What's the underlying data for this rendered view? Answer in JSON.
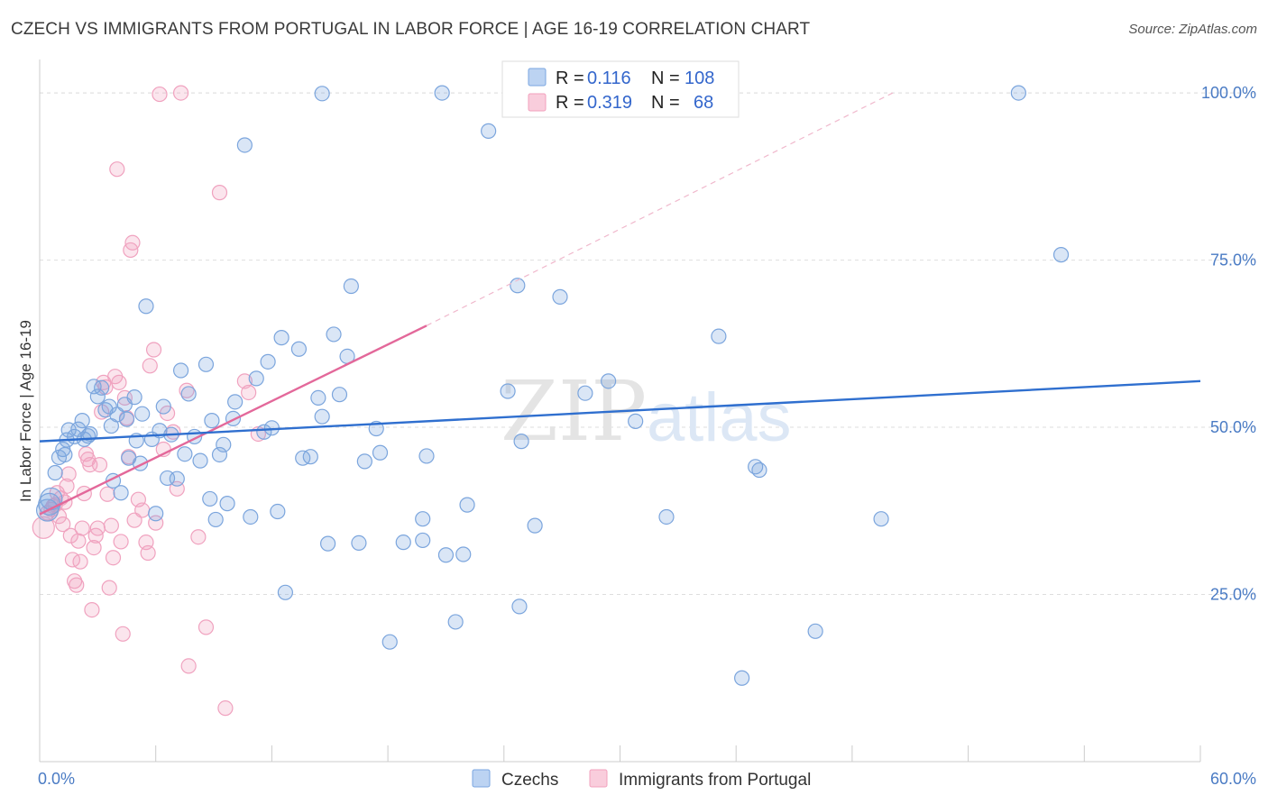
{
  "title": "CZECH VS IMMIGRANTS FROM PORTUGAL IN LABOR FORCE | AGE 16-19 CORRELATION CHART",
  "source_prefix": "Source: ",
  "source_site": "ZipAtlas.com",
  "watermark": {
    "zip": "ZIP",
    "atlas": "atlas"
  },
  "chart_data": {
    "type": "scatter",
    "xlabel": "",
    "ylabel": "In Labor Force | Age 16-19",
    "xlim": [
      0,
      60
    ],
    "ylim": [
      0,
      105
    ],
    "x_tick_labels": [
      {
        "value": 0,
        "label": "0.0%"
      },
      {
        "value": 60,
        "label": "60.0%"
      }
    ],
    "y_tick_labels": [
      {
        "value": 25,
        "label": "25.0%"
      },
      {
        "value": 50,
        "label": "50.0%"
      },
      {
        "value": 75,
        "label": "75.0%"
      },
      {
        "value": 100,
        "label": "100.0%"
      }
    ],
    "grid": "horizontal dashed",
    "legend": {
      "placement": "top-center",
      "entries": [
        {
          "r_label": "R =",
          "r": "0.116",
          "n_label": "N =",
          "n": "108",
          "color": "#7aa6e0"
        },
        {
          "r_label": "R =",
          "r": "0.319",
          "n_label": "N =",
          "n": "68",
          "color": "#f2a0bd"
        }
      ]
    },
    "bottom_legend": [
      "Czechs",
      "Immigrants from Portugal"
    ],
    "series": [
      {
        "name": "Czechs",
        "color": "#7aa6e0",
        "trend": {
          "x": [
            0,
            60
          ],
          "y": [
            47.9,
            56.9
          ],
          "color": "#2f6fcf"
        },
        "points": [
          [
            0.4,
            37.6
          ],
          [
            0.5,
            38.5
          ],
          [
            0.6,
            39.3
          ],
          [
            0.8,
            43.2
          ],
          [
            1.0,
            45.5
          ],
          [
            1.2,
            46.7
          ],
          [
            1.3,
            45.9
          ],
          [
            1.4,
            48.1
          ],
          [
            1.5,
            49.6
          ],
          [
            1.8,
            48.6
          ],
          [
            2.0,
            49.7
          ],
          [
            2.2,
            51.0
          ],
          [
            2.3,
            48.2
          ],
          [
            2.5,
            48.7
          ],
          [
            2.6,
            49.0
          ],
          [
            2.8,
            56.1
          ],
          [
            3.0,
            54.6
          ],
          [
            3.2,
            55.9
          ],
          [
            3.4,
            52.6
          ],
          [
            3.6,
            53.1
          ],
          [
            3.7,
            50.2
          ],
          [
            3.8,
            42.0
          ],
          [
            4.0,
            51.9
          ],
          [
            4.2,
            40.2
          ],
          [
            4.4,
            53.4
          ],
          [
            4.5,
            51.2
          ],
          [
            4.6,
            45.4
          ],
          [
            4.9,
            54.5
          ],
          [
            5.0,
            48.0
          ],
          [
            5.2,
            44.6
          ],
          [
            5.3,
            52.0
          ],
          [
            5.5,
            68.1
          ],
          [
            5.8,
            48.2
          ],
          [
            6.0,
            37.1
          ],
          [
            6.2,
            49.5
          ],
          [
            6.4,
            53.1
          ],
          [
            6.6,
            42.4
          ],
          [
            6.8,
            48.9
          ],
          [
            7.1,
            42.3
          ],
          [
            7.3,
            58.5
          ],
          [
            7.5,
            46.0
          ],
          [
            7.7,
            55.0
          ],
          [
            8.0,
            48.6
          ],
          [
            8.3,
            45.0
          ],
          [
            8.6,
            59.4
          ],
          [
            8.8,
            39.3
          ],
          [
            8.9,
            51.0
          ],
          [
            9.1,
            36.2
          ],
          [
            9.3,
            45.9
          ],
          [
            9.5,
            47.4
          ],
          [
            9.7,
            38.6
          ],
          [
            10.0,
            51.3
          ],
          [
            10.1,
            53.8
          ],
          [
            10.6,
            92.2
          ],
          [
            10.9,
            36.6
          ],
          [
            11.2,
            57.3
          ],
          [
            11.6,
            49.3
          ],
          [
            11.8,
            59.8
          ],
          [
            12.0,
            49.9
          ],
          [
            12.3,
            37.4
          ],
          [
            12.5,
            63.4
          ],
          [
            12.7,
            25.3
          ],
          [
            13.4,
            61.7
          ],
          [
            13.6,
            45.4
          ],
          [
            14.0,
            45.6
          ],
          [
            14.4,
            54.4
          ],
          [
            14.6,
            51.6
          ],
          [
            14.6,
            99.9
          ],
          [
            14.9,
            32.6
          ],
          [
            15.2,
            63.9
          ],
          [
            15.5,
            54.9
          ],
          [
            15.9,
            60.6
          ],
          [
            16.1,
            71.1
          ],
          [
            16.5,
            32.7
          ],
          [
            16.8,
            44.9
          ],
          [
            17.4,
            49.8
          ],
          [
            17.6,
            46.2
          ],
          [
            18.1,
            17.9
          ],
          [
            18.8,
            32.8
          ],
          [
            19.8,
            36.3
          ],
          [
            19.8,
            33.1
          ],
          [
            20.0,
            45.7
          ],
          [
            20.8,
            100.0
          ],
          [
            21.0,
            30.9
          ],
          [
            21.5,
            20.9
          ],
          [
            21.9,
            31.0
          ],
          [
            22.1,
            38.4
          ],
          [
            23.2,
            94.3
          ],
          [
            24.2,
            55.4
          ],
          [
            24.7,
            71.2
          ],
          [
            24.8,
            23.2
          ],
          [
            24.9,
            47.9
          ],
          [
            25.6,
            35.3
          ],
          [
            26.9,
            69.5
          ],
          [
            28.1,
            99.9
          ],
          [
            28.2,
            55.1
          ],
          [
            29.4,
            56.9
          ],
          [
            30.8,
            50.9
          ],
          [
            32.4,
            36.6
          ],
          [
            35.1,
            63.6
          ],
          [
            36.3,
            12.5
          ],
          [
            37.0,
            44.1
          ],
          [
            37.2,
            43.6
          ],
          [
            40.1,
            19.5
          ],
          [
            43.5,
            36.3
          ],
          [
            50.6,
            100.0
          ],
          [
            52.8,
            75.8
          ]
        ]
      },
      {
        "name": "Immigrants from Portugal",
        "color": "#f2a0bd",
        "trend": {
          "x": [
            0,
            20
          ],
          "y": [
            37.0,
            65.2
          ],
          "color": "#e3689a",
          "dashed_extension": {
            "x": [
              20,
              44.1
            ],
            "y": [
              65.2,
              100.0
            ]
          }
        },
        "points": [
          [
            0.2,
            35.0
          ],
          [
            0.4,
            37.2
          ],
          [
            0.6,
            37.7
          ],
          [
            0.7,
            38.2
          ],
          [
            0.8,
            38.4
          ],
          [
            0.9,
            40.2
          ],
          [
            1.0,
            36.7
          ],
          [
            1.1,
            39.4
          ],
          [
            1.2,
            35.5
          ],
          [
            1.3,
            38.8
          ],
          [
            1.4,
            41.2
          ],
          [
            1.5,
            43.0
          ],
          [
            1.6,
            33.8
          ],
          [
            1.7,
            30.2
          ],
          [
            1.8,
            27.0
          ],
          [
            1.9,
            26.4
          ],
          [
            2.0,
            33.0
          ],
          [
            2.1,
            29.9
          ],
          [
            2.2,
            34.9
          ],
          [
            2.3,
            40.1
          ],
          [
            2.4,
            46.0
          ],
          [
            2.5,
            45.2
          ],
          [
            2.6,
            44.4
          ],
          [
            2.7,
            22.7
          ],
          [
            2.8,
            32.0
          ],
          [
            2.9,
            33.8
          ],
          [
            3.0,
            34.9
          ],
          [
            3.1,
            44.4
          ],
          [
            3.2,
            52.3
          ],
          [
            3.3,
            56.7
          ],
          [
            3.4,
            56.0
          ],
          [
            3.5,
            40.0
          ],
          [
            3.6,
            26.0
          ],
          [
            3.7,
            35.3
          ],
          [
            3.8,
            30.5
          ],
          [
            3.9,
            57.6
          ],
          [
            4.0,
            88.6
          ],
          [
            4.1,
            56.7
          ],
          [
            4.2,
            32.9
          ],
          [
            4.3,
            19.1
          ],
          [
            4.4,
            54.4
          ],
          [
            4.5,
            51.4
          ],
          [
            4.6,
            45.6
          ],
          [
            4.7,
            76.5
          ],
          [
            4.8,
            77.6
          ],
          [
            4.9,
            36.1
          ],
          [
            5.1,
            39.2
          ],
          [
            5.3,
            37.6
          ],
          [
            5.5,
            32.8
          ],
          [
            5.6,
            31.2
          ],
          [
            5.7,
            59.2
          ],
          [
            5.9,
            61.6
          ],
          [
            6.0,
            35.7
          ],
          [
            6.2,
            99.8
          ],
          [
            6.4,
            46.7
          ],
          [
            6.6,
            52.1
          ],
          [
            6.9,
            49.3
          ],
          [
            7.1,
            40.8
          ],
          [
            7.3,
            100.0
          ],
          [
            7.6,
            55.5
          ],
          [
            7.7,
            14.3
          ],
          [
            8.2,
            33.6
          ],
          [
            8.6,
            20.1
          ],
          [
            9.3,
            85.1
          ],
          [
            9.6,
            8.0
          ],
          [
            10.8,
            55.2
          ],
          [
            10.6,
            56.9
          ],
          [
            11.3,
            49.0
          ]
        ]
      }
    ]
  }
}
